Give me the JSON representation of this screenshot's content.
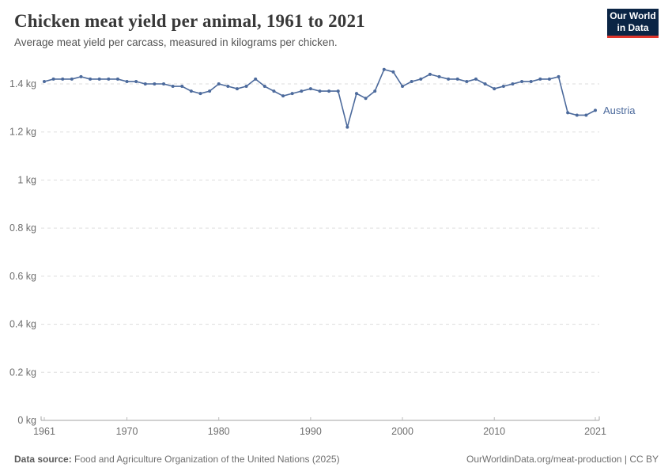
{
  "header": {
    "title": "Chicken meat yield per animal, 1961 to 2021",
    "subtitle": "Average meat yield per carcass, measured in kilograms per chicken."
  },
  "logo": {
    "line1": "Our World",
    "line2": "in Data"
  },
  "colors": {
    "series_blue": "#4c6a9c",
    "grid": "#dddddd",
    "axis": "#a3a3a3",
    "tick_text": "#6e6e6e",
    "logo_bg": "#0b2545",
    "logo_red": "#e0362c"
  },
  "chart_data": {
    "type": "line",
    "title": "Chicken meat yield per animal, 1961 to 2021",
    "subtitle": "Average meat yield per carcass, measured in kilograms per chicken.",
    "xlabel": "",
    "ylabel": "",
    "xlim": [
      1961,
      2021
    ],
    "ylim": [
      0,
      1.4
    ],
    "grid": "horizontal-dashed",
    "legend_position": "end-of-line",
    "x_ticks": [
      1961,
      1970,
      1980,
      1990,
      2000,
      2010,
      2021
    ],
    "y_ticks": [
      0,
      0.2,
      0.4,
      0.6,
      0.8,
      1,
      1.2,
      1.4
    ],
    "y_tick_labels": [
      "0 kg",
      "0.2 kg",
      "0.4 kg",
      "0.6 kg",
      "0.8 kg",
      "1 kg",
      "1.2 kg",
      "1.4 kg"
    ],
    "series": [
      {
        "name": "Austria",
        "color": "#4c6a9c",
        "x": [
          1961,
          1962,
          1963,
          1964,
          1965,
          1966,
          1967,
          1968,
          1969,
          1970,
          1971,
          1972,
          1973,
          1974,
          1975,
          1976,
          1977,
          1978,
          1979,
          1980,
          1981,
          1982,
          1983,
          1984,
          1985,
          1986,
          1987,
          1988,
          1989,
          1990,
          1991,
          1992,
          1993,
          1994,
          1995,
          1996,
          1997,
          1998,
          1999,
          2000,
          2001,
          2002,
          2003,
          2004,
          2005,
          2006,
          2007,
          2008,
          2009,
          2010,
          2011,
          2012,
          2013,
          2014,
          2015,
          2016,
          2017,
          2018,
          2019,
          2020,
          2021
        ],
        "values": [
          1.41,
          1.42,
          1.42,
          1.42,
          1.43,
          1.42,
          1.42,
          1.42,
          1.42,
          1.41,
          1.41,
          1.4,
          1.4,
          1.4,
          1.39,
          1.39,
          1.37,
          1.36,
          1.37,
          1.4,
          1.39,
          1.38,
          1.39,
          1.42,
          1.39,
          1.37,
          1.35,
          1.36,
          1.37,
          1.38,
          1.37,
          1.37,
          1.37,
          1.22,
          1.36,
          1.34,
          1.37,
          1.46,
          1.45,
          1.39,
          1.41,
          1.42,
          1.44,
          1.43,
          1.42,
          1.42,
          1.41,
          1.42,
          1.4,
          1.38,
          1.39,
          1.4,
          1.41,
          1.41,
          1.42,
          1.42,
          1.43,
          1.28,
          1.27,
          1.27,
          1.29
        ]
      }
    ]
  },
  "footer": {
    "datasource_label": "Data source:",
    "datasource": " Food and Agriculture Organization of the United Nations (2025)",
    "link": "OurWorldinData.org/meat-production | CC BY"
  }
}
